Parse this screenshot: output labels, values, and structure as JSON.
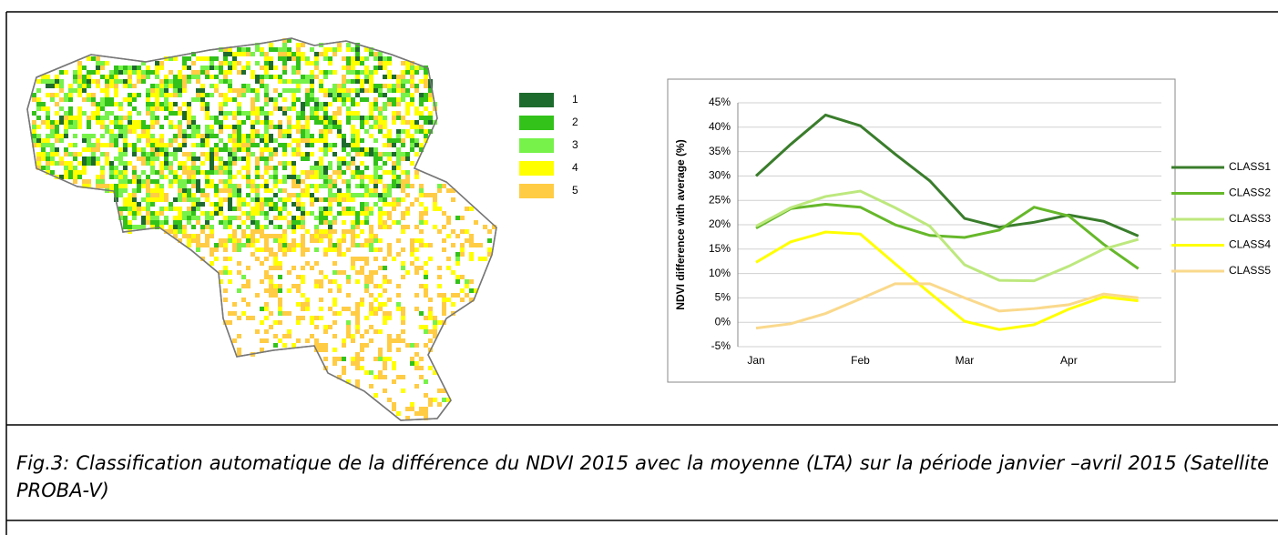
{
  "chart_data": {
    "type": "line",
    "y_label": "NDVI difference with average (%)",
    "categories": [
      "Jan",
      null,
      null,
      "Feb",
      null,
      null,
      "Mar",
      null,
      null,
      "Apr",
      null,
      null
    ],
    "series": [
      {
        "name": "CLASS1",
        "color": "#3a7d2c",
        "values": [
          30,
          36.5,
          42.5,
          40.3,
          34.5,
          29,
          21.3,
          19.5,
          20.5,
          22,
          20.7,
          17.7
        ]
      },
      {
        "name": "CLASS2",
        "color": "#66b82a",
        "values": [
          19.3,
          23.3,
          24.2,
          23.6,
          20,
          17.8,
          17.4,
          18.9,
          23.6,
          21.8,
          16,
          11
        ]
      },
      {
        "name": "CLASS3",
        "color": "#bde87e",
        "values": [
          19.7,
          23.5,
          25.8,
          26.9,
          23.5,
          19.7,
          11.8,
          8.6,
          8.5,
          11.5,
          15,
          17
        ]
      },
      {
        "name": "CLASS4",
        "color": "#ffff00",
        "values": [
          12.3,
          16.5,
          18.5,
          18.1,
          12,
          6,
          0.2,
          -1.5,
          -0.5,
          2.7,
          5.2,
          4.4
        ]
      },
      {
        "name": "CLASS5",
        "color": "#fad98c",
        "values": [
          -1.2,
          -0.3,
          1.8,
          4.8,
          7.9,
          7.9,
          5,
          2.3,
          2.8,
          3.6,
          5.8,
          5
        ]
      }
    ],
    "ylim": [
      -5,
      45
    ],
    "yticks": [
      {
        "value": -5,
        "label": "-5%"
      },
      {
        "value": 0,
        "label": "0%"
      },
      {
        "value": 5,
        "label": "5%"
      },
      {
        "value": 10,
        "label": "10%"
      },
      {
        "value": 15,
        "label": "15%"
      },
      {
        "value": 20,
        "label": "20%"
      },
      {
        "value": 25,
        "label": "25%"
      },
      {
        "value": 30,
        "label": "30%"
      },
      {
        "value": 35,
        "label": "35%"
      },
      {
        "value": 40,
        "label": "40%"
      },
      {
        "value": 45,
        "label": "45%"
      }
    ],
    "grid": true
  },
  "map_legend": [
    {
      "label": "1",
      "color": "#1e6b2e"
    },
    {
      "label": "2",
      "color": "#33c21a"
    },
    {
      "label": "3",
      "color": "#77f24a"
    },
    {
      "label": "4",
      "color": "#ffff00"
    },
    {
      "label": "5",
      "color": "#ffcc44"
    }
  ],
  "caption": "Fig.3: Classification automatique de la différence du NDVI 2015 avec la moyenne (LTA) sur la période janvier –avril 2015 (Satellite PROBA-V)"
}
